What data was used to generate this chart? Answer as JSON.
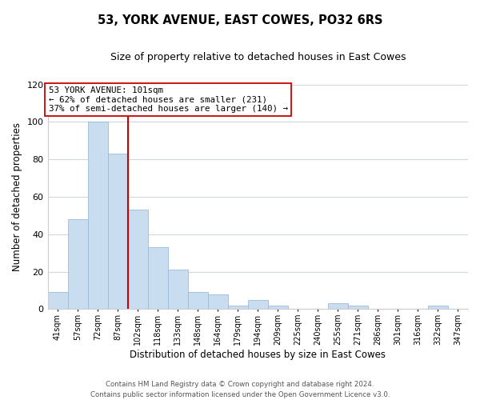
{
  "title": "53, YORK AVENUE, EAST COWES, PO32 6RS",
  "subtitle": "Size of property relative to detached houses in East Cowes",
  "xlabel": "Distribution of detached houses by size in East Cowes",
  "ylabel": "Number of detached properties",
  "bin_labels": [
    "41sqm",
    "57sqm",
    "72sqm",
    "87sqm",
    "102sqm",
    "118sqm",
    "133sqm",
    "148sqm",
    "164sqm",
    "179sqm",
    "194sqm",
    "209sqm",
    "225sqm",
    "240sqm",
    "255sqm",
    "271sqm",
    "286sqm",
    "301sqm",
    "316sqm",
    "332sqm",
    "347sqm"
  ],
  "bar_heights": [
    9,
    48,
    100,
    83,
    53,
    33,
    21,
    9,
    8,
    2,
    5,
    2,
    0,
    0,
    3,
    2,
    0,
    0,
    0,
    2,
    0
  ],
  "bar_color": "#c8ddf0",
  "bar_edge_color": "#9dbbd6",
  "property_line_color": "#cc0000",
  "annotation_line1": "53 YORK AVENUE: 101sqm",
  "annotation_line2": "← 62% of detached houses are smaller (231)",
  "annotation_line3": "37% of semi-detached houses are larger (140) →",
  "annotation_box_color": "#ffffff",
  "annotation_box_edge": "#cc0000",
  "ylim": [
    0,
    120
  ],
  "yticks": [
    0,
    20,
    40,
    60,
    80,
    100,
    120
  ],
  "footer_line1": "Contains HM Land Registry data © Crown copyright and database right 2024.",
  "footer_line2": "Contains public sector information licensed under the Open Government Licence v3.0.",
  "bg_color": "#ffffff",
  "grid_color": "#cdd9e5"
}
